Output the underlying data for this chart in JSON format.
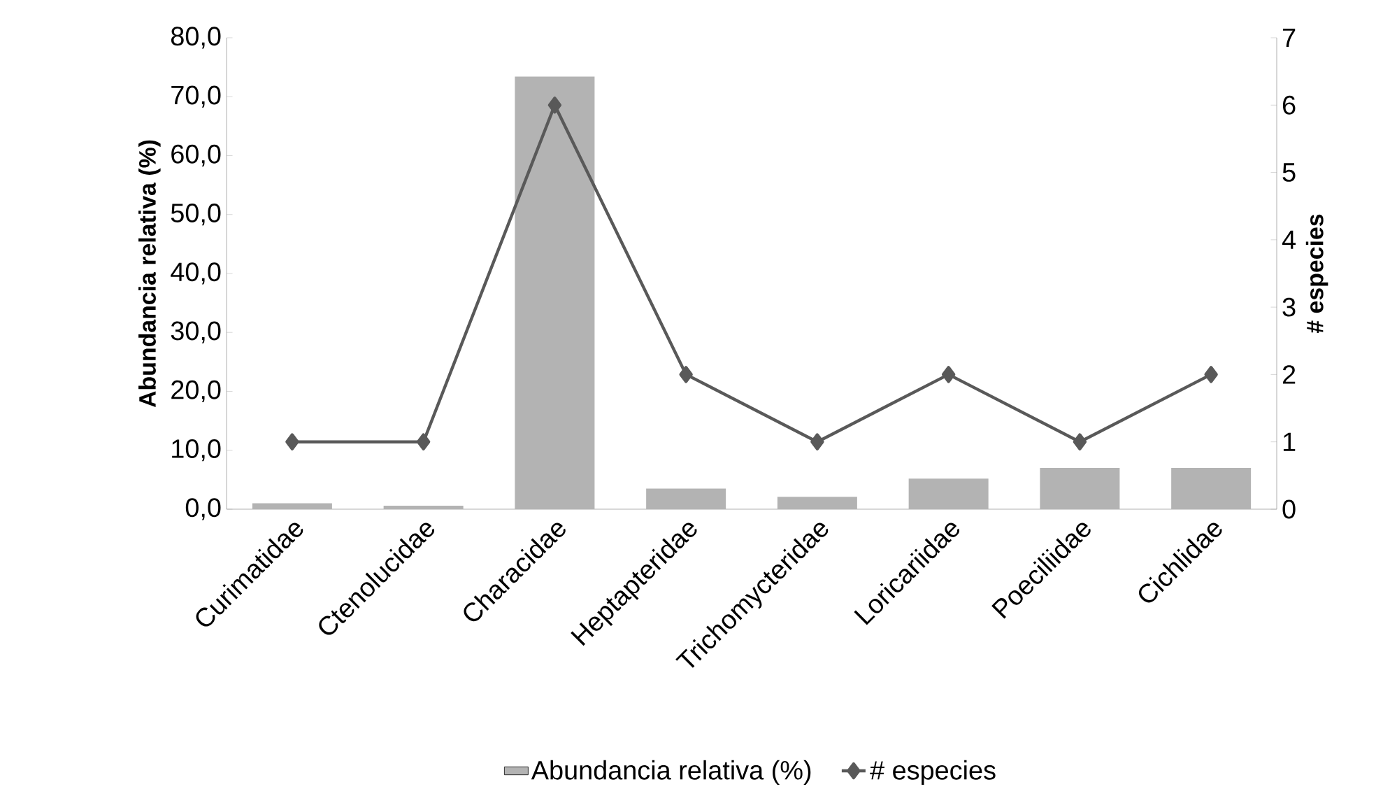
{
  "chart_data": {
    "type": "bar",
    "categories": [
      "Curimatidae",
      "Ctenolucidae",
      "Characidae",
      "Heptapteridae",
      "Trichomycteridae",
      "Loricariidae",
      "Poeciliidae",
      "Cichlidae"
    ],
    "ylabel": "Abundancia relativa (%)",
    "y2label": "# especies",
    "series": [
      {
        "name": "Abundancia relativa (%)",
        "color": "#b3b3b3",
        "values": [
          1.0,
          0.6,
          73.4,
          3.5,
          2.1,
          5.2,
          7.0,
          7.0
        ]
      },
      {
        "name": "# especies",
        "type": "line",
        "axis": "y2",
        "color": "#595959",
        "marker": "diamond",
        "values": [
          1,
          1,
          6,
          2,
          1,
          2,
          1,
          2
        ]
      }
    ],
    "ylim": [
      0,
      80
    ],
    "yticks": [
      {
        "value": 0,
        "label": "0,0"
      },
      {
        "value": 10,
        "label": "10,0"
      },
      {
        "value": 20,
        "label": "20,0"
      },
      {
        "value": 30,
        "label": "30,0"
      },
      {
        "value": 40,
        "label": "40,0"
      },
      {
        "value": 50,
        "label": "50,0"
      },
      {
        "value": 60,
        "label": "60,0"
      },
      {
        "value": 70,
        "label": "70,0"
      },
      {
        "value": 80,
        "label": "80,0"
      }
    ],
    "y2lim": [
      0,
      7
    ],
    "y2ticks": [
      0,
      1,
      2,
      3,
      4,
      5,
      6,
      7
    ],
    "grid": false,
    "legend": "bottom"
  }
}
